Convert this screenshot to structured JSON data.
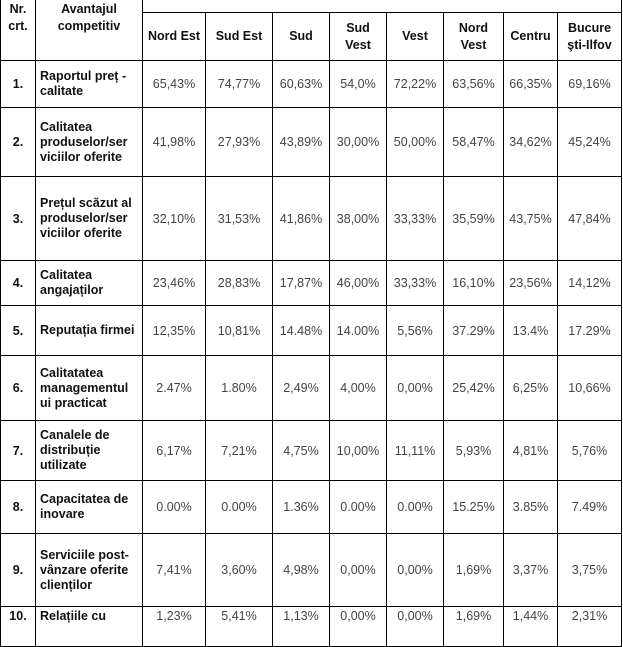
{
  "header": {
    "nr": "Nr. crt.",
    "advantage": "Avantajul competitiv",
    "regions": [
      "Nord Est",
      "Sud Est",
      "Sud",
      "Sud Vest",
      "Vest",
      "Nord Vest",
      "Centru",
      "Bucure şti-Ilfov"
    ]
  },
  "rows": [
    {
      "nr": "1.",
      "label": "Raportul preț - calitate",
      "values": [
        "65,43%",
        "74,77%",
        "60,63%",
        "54,0%",
        "72,22%",
        "63,56%",
        "66,35%",
        "69,16%"
      ]
    },
    {
      "nr": "2.",
      "label": "Calitatea produselor/ser viciilor oferite",
      "values": [
        "41,98%",
        "27,93%",
        "43,89%",
        "30,00%",
        "50,00%",
        "58,47%",
        "34,62%",
        "45,24%"
      ]
    },
    {
      "nr": "3.",
      "label": "Prețul scăzut al produselor/ser viciilor oferite",
      "values": [
        "32,10%",
        "31,53%",
        "41,86%",
        "38,00%",
        "33,33%",
        "35,59%",
        "43,75%",
        "47,84%"
      ]
    },
    {
      "nr": "4.",
      "label": "Calitatea angajaților",
      "values": [
        "23,46%",
        "28,83%",
        "17,87%",
        "46,00%",
        "33,33%",
        "16,10%",
        "23,56%",
        "14,12%"
      ]
    },
    {
      "nr": "5.",
      "label": "Reputația firmei",
      "values": [
        "12,35%",
        "10,81%",
        "14.48%",
        "14.00%",
        "5,56%",
        "37.29%",
        "13.4%",
        "17.29%"
      ]
    },
    {
      "nr": "6.",
      "label": "Calitatatea managementul ui practicat",
      "values": [
        "2.47%",
        "1.80%",
        "2,49%",
        "4,00%",
        "0,00%",
        "25,42%",
        "6,25%",
        "10,66%"
      ]
    },
    {
      "nr": "7.",
      "label": "Canalele de distribuție utilizate",
      "values": [
        "6,17%",
        "7,21%",
        "4,75%",
        "10,00%",
        "11,11%",
        "5,93%",
        "4,81%",
        "5,76%"
      ]
    },
    {
      "nr": "8.",
      "label": "Capacitatea de inovare",
      "values": [
        "0.00%",
        "0.00%",
        "1.36%",
        "0.00%",
        "0.00%",
        "15.25%",
        "3.85%",
        "7.49%"
      ]
    },
    {
      "nr": "9.",
      "label": "Serviciile post-vânzare oferite clienților",
      "values": [
        "7,41%",
        "3,60%",
        "4,98%",
        "0,00%",
        "0,00%",
        "1,69%",
        "3,37%",
        "3,75%"
      ]
    },
    {
      "nr": "10.",
      "label": "Relațiile cu",
      "values": [
        "1,23%",
        "5,41%",
        "1,13%",
        "0,00%",
        "0,00%",
        "1,69%",
        "1,44%",
        "2,31%"
      ]
    }
  ]
}
